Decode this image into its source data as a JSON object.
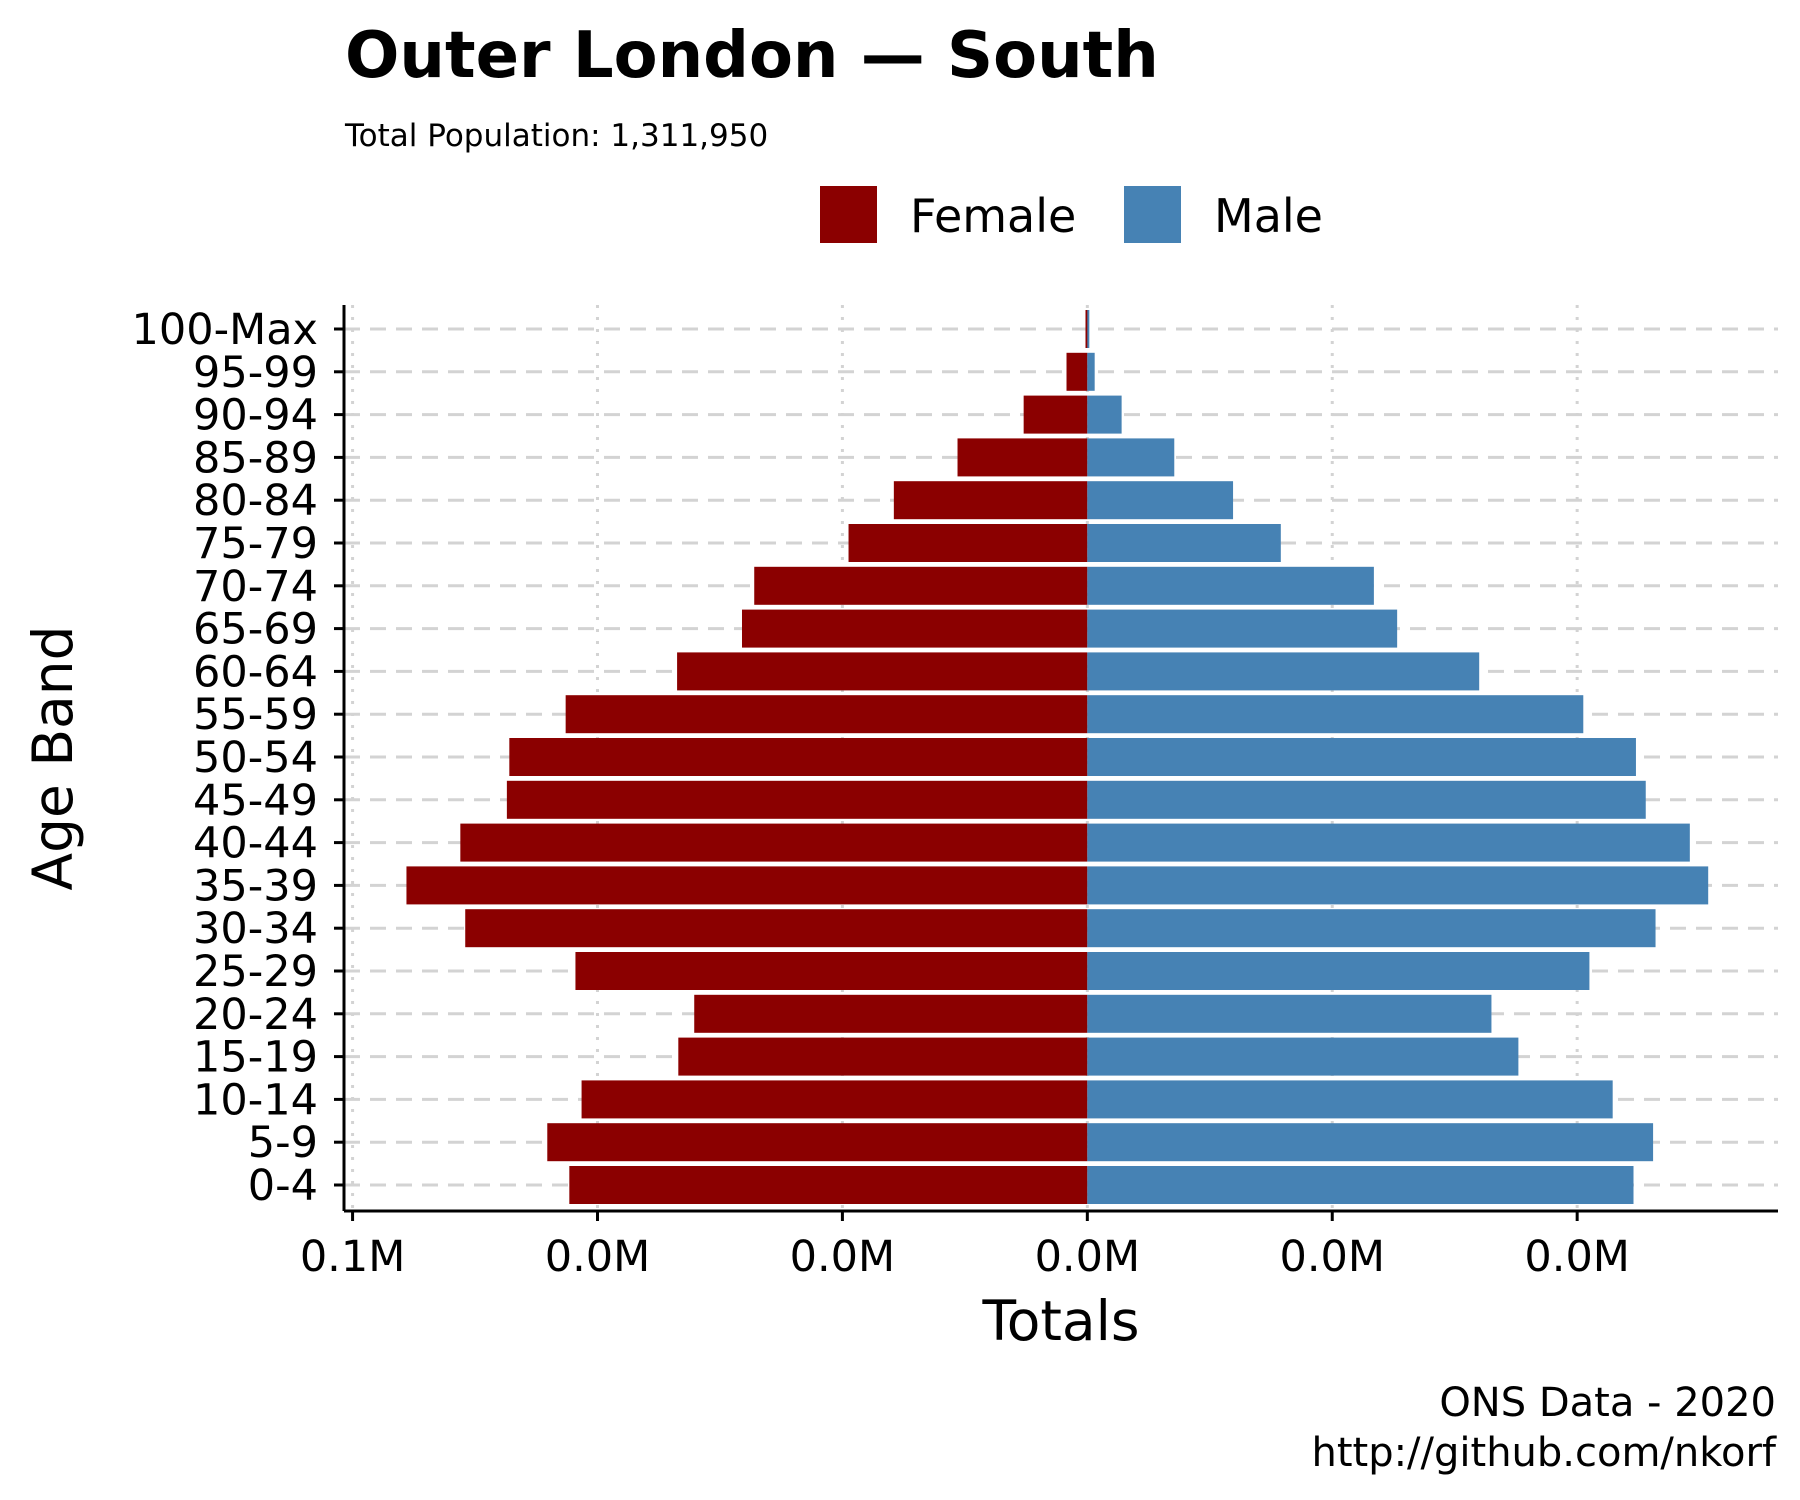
{
  "colors": {
    "female": "#8b0000",
    "male": "#4682b4",
    "grid": "#d3d3d3"
  },
  "chart_data": {
    "type": "bar",
    "orientation": "horizontal-population-pyramid",
    "title": "Outer London — South",
    "subtitle": "Total Population:  1,311,950",
    "xlabel": "Totals",
    "ylabel": "Age Band",
    "caption_line1": "ONS Data - 2020",
    "caption_line2": "http://github.com/nkorf",
    "legend": {
      "position": "top",
      "female_label": "Female",
      "male_label": "Male"
    },
    "categories": [
      "0-4",
      "5-9",
      "10-14",
      "15-19",
      "20-24",
      "25-29",
      "30-34",
      "35-39",
      "40-44",
      "45-49",
      "50-54",
      "55-59",
      "60-64",
      "65-69",
      "70-74",
      "75-79",
      "80-84",
      "85-89",
      "90-94",
      "95-99",
      "100-Max"
    ],
    "x_tick_labels": [
      "0.1M",
      "0.0M",
      "0.0M",
      "0.0M",
      "0.0M",
      "0.0M"
    ],
    "x_ticks": [
      -60000,
      -40000,
      -20000,
      0,
      20000,
      40000
    ],
    "xlim": [
      -60700,
      56400
    ],
    "grid": true,
    "series": [
      {
        "name": "Female",
        "values": [
          -42300,
          -44100,
          -41300,
          -33400,
          -32100,
          -41800,
          -50800,
          -55600,
          -51200,
          -47400,
          -47200,
          -42600,
          -33500,
          -28200,
          -27200,
          -19500,
          -15800,
          -10600,
          -5200,
          -1700,
          -150
        ]
      },
      {
        "name": "Male",
        "values": [
          44600,
          46200,
          42900,
          35200,
          33000,
          41000,
          46400,
          50700,
          49200,
          45600,
          44800,
          40500,
          32000,
          25300,
          23400,
          15800,
          11900,
          7100,
          2800,
          600,
          50
        ]
      }
    ]
  }
}
